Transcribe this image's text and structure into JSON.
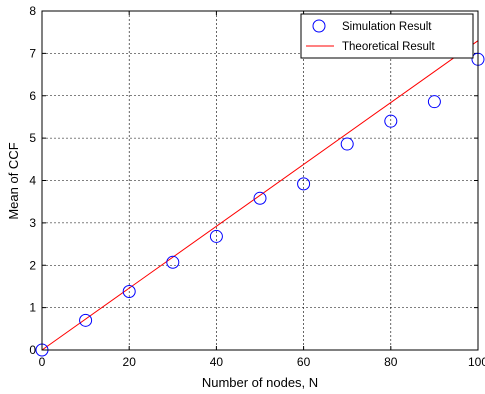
{
  "chart_data": {
    "type": "line",
    "xlabel": "Number of nodes, N",
    "ylabel": "Mean of CCF",
    "xlim": [
      0,
      100
    ],
    "ylim": [
      0,
      8
    ],
    "x_ticks": [
      0,
      20,
      40,
      60,
      80,
      100
    ],
    "y_ticks": [
      0,
      1,
      2,
      3,
      4,
      5,
      6,
      7,
      8
    ],
    "grid": true,
    "legend_position": "top-right",
    "series": [
      {
        "name": "Simulation Result",
        "kind": "scatter",
        "marker": "circle",
        "color": "#0000ff",
        "points": [
          {
            "x": 0,
            "y": 0.0
          },
          {
            "x": 10,
            "y": 0.7
          },
          {
            "x": 20,
            "y": 1.38
          },
          {
            "x": 30,
            "y": 2.07
          },
          {
            "x": 40,
            "y": 2.68
          },
          {
            "x": 50,
            "y": 3.58
          },
          {
            "x": 60,
            "y": 3.92
          },
          {
            "x": 70,
            "y": 4.86
          },
          {
            "x": 80,
            "y": 5.4
          },
          {
            "x": 90,
            "y": 5.86
          },
          {
            "x": 100,
            "y": 6.86
          }
        ]
      },
      {
        "name": "Theoretical Result",
        "kind": "line",
        "color": "#ff0000",
        "points": [
          {
            "x": 0,
            "y": 0.0
          },
          {
            "x": 100,
            "y": 7.3
          }
        ]
      }
    ]
  }
}
